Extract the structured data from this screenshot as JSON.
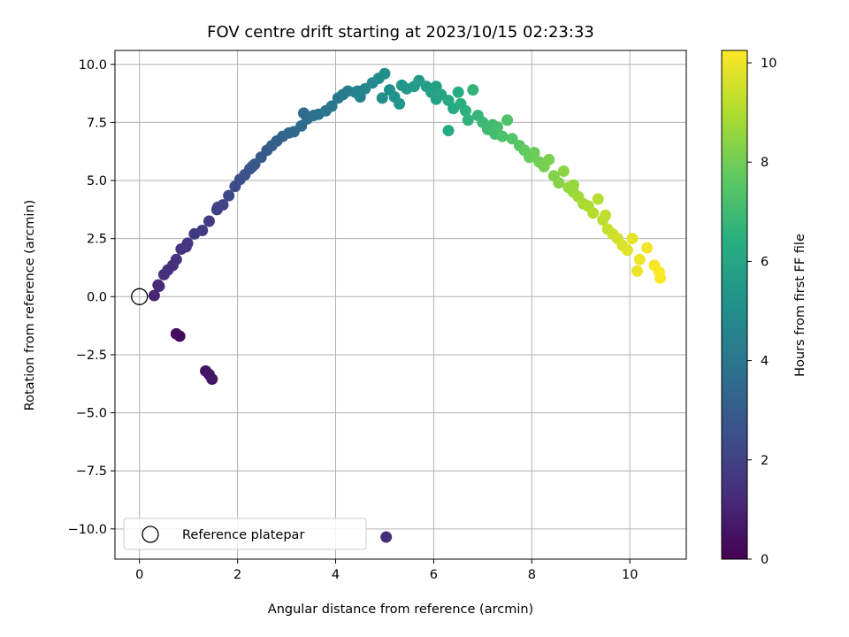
{
  "chart_data": {
    "type": "scatter",
    "title": "FOV centre drift starting at 2023/10/15 02:23:33",
    "xlabel": "Angular distance from reference (arcmin)",
    "ylabel": "Rotation from reference (arcmin)",
    "xlim": [
      -0.5,
      11.15
    ],
    "ylim": [
      -11.3,
      10.6
    ],
    "xticks": [
      "0",
      "2",
      "4",
      "6",
      "8",
      "10"
    ],
    "yticks": [
      "10.0",
      "7.5",
      "5.0",
      "2.5",
      "0.0",
      "−2.5",
      "−5.0",
      "−7.5",
      "−10.0"
    ],
    "grid": true,
    "legend": {
      "position": "lower-left",
      "entries": [
        "Reference platepar"
      ]
    },
    "colorbar": {
      "label": "Hours from first FF file",
      "range": [
        0,
        10.25
      ],
      "ticks": [
        "0",
        "2",
        "4",
        "6",
        "8",
        "10"
      ],
      "colormap": "viridis"
    },
    "reference_point": {
      "x": 0,
      "y": 0,
      "label": "Reference platepar"
    },
    "points_xyh": [
      [
        0.75,
        -1.6,
        0.25
      ],
      [
        0.82,
        -1.7,
        0.3
      ],
      [
        1.35,
        -3.2,
        0.5
      ],
      [
        1.42,
        -3.35,
        0.55
      ],
      [
        1.48,
        -3.55,
        0.6
      ],
      [
        5.03,
        -10.35,
        1.3
      ],
      [
        0.3,
        0.05,
        1.1
      ],
      [
        0.38,
        0.5,
        1.2
      ],
      [
        0.5,
        0.95,
        1.3
      ],
      [
        0.58,
        1.15,
        1.35
      ],
      [
        0.68,
        1.35,
        1.4
      ],
      [
        0.75,
        1.6,
        1.45
      ],
      [
        0.85,
        2.05,
        1.55
      ],
      [
        0.98,
        2.3,
        1.6
      ],
      [
        1.12,
        2.7,
        1.7
      ],
      [
        1.28,
        2.85,
        1.75
      ],
      [
        1.42,
        3.25,
        1.85
      ],
      [
        1.58,
        3.75,
        1.95
      ],
      [
        1.7,
        3.95,
        2.05
      ],
      [
        1.82,
        4.35,
        2.2
      ],
      [
        1.95,
        4.75,
        2.35
      ],
      [
        2.05,
        5.05,
        2.45
      ],
      [
        2.15,
        5.25,
        2.55
      ],
      [
        2.25,
        5.5,
        2.65
      ],
      [
        2.35,
        5.7,
        2.75
      ],
      [
        2.48,
        6.0,
        2.85
      ],
      [
        2.6,
        6.3,
        2.95
      ],
      [
        2.7,
        6.5,
        3.05
      ],
      [
        2.8,
        6.7,
        3.15
      ],
      [
        2.92,
        6.9,
        3.25
      ],
      [
        3.05,
        7.05,
        3.35
      ],
      [
        3.15,
        7.1,
        3.45
      ],
      [
        3.3,
        7.35,
        3.55
      ],
      [
        3.42,
        7.65,
        3.65
      ],
      [
        3.55,
        7.8,
        3.75
      ],
      [
        3.65,
        7.85,
        3.85
      ],
      [
        3.8,
        8.0,
        3.95
      ],
      [
        3.92,
        8.2,
        4.05
      ],
      [
        4.05,
        8.55,
        4.15
      ],
      [
        4.15,
        8.7,
        4.25
      ],
      [
        4.25,
        8.85,
        4.35
      ],
      [
        4.4,
        8.8,
        4.45
      ],
      [
        4.5,
        8.6,
        4.55
      ],
      [
        4.6,
        8.95,
        4.7
      ],
      [
        4.75,
        9.2,
        4.8
      ],
      [
        4.88,
        9.4,
        4.9
      ],
      [
        5.0,
        9.6,
        5.0
      ],
      [
        5.1,
        8.9,
        5.1
      ],
      [
        5.2,
        8.6,
        5.2
      ],
      [
        5.3,
        8.3,
        5.3
      ],
      [
        5.45,
        8.95,
        5.4
      ],
      [
        5.6,
        9.05,
        5.5
      ],
      [
        5.7,
        9.3,
        5.6
      ],
      [
        5.85,
        9.05,
        5.7
      ],
      [
        5.95,
        8.8,
        5.8
      ],
      [
        6.05,
        8.5,
        5.9
      ],
      [
        6.15,
        8.7,
        6.0
      ],
      [
        6.3,
        8.45,
        6.15
      ],
      [
        6.4,
        8.1,
        6.25
      ],
      [
        6.5,
        8.8,
        6.3
      ],
      [
        6.55,
        8.3,
        6.35
      ],
      [
        6.65,
        8.0,
        6.5
      ],
      [
        6.7,
        7.6,
        6.6
      ],
      [
        6.8,
        8.9,
        6.65
      ],
      [
        6.9,
        7.8,
        6.75
      ],
      [
        7.0,
        7.5,
        6.85
      ],
      [
        7.1,
        7.2,
        6.95
      ],
      [
        7.2,
        7.4,
        7.05
      ],
      [
        7.3,
        7.3,
        7.15
      ],
      [
        7.4,
        6.9,
        7.25
      ],
      [
        7.5,
        7.6,
        7.3
      ],
      [
        7.6,
        6.8,
        7.45
      ],
      [
        7.75,
        6.5,
        7.6
      ],
      [
        7.85,
        6.3,
        7.7
      ],
      [
        7.95,
        6.0,
        7.8
      ],
      [
        8.05,
        6.2,
        7.9
      ],
      [
        8.15,
        5.8,
        8.0
      ],
      [
        8.25,
        5.6,
        8.1
      ],
      [
        8.35,
        5.9,
        8.15
      ],
      [
        8.45,
        5.2,
        8.25
      ],
      [
        8.55,
        4.9,
        8.35
      ],
      [
        8.65,
        5.4,
        8.45
      ],
      [
        8.75,
        4.7,
        8.55
      ],
      [
        8.85,
        4.5,
        8.65
      ],
      [
        8.95,
        4.3,
        8.75
      ],
      [
        9.05,
        4.0,
        8.85
      ],
      [
        9.15,
        3.9,
        8.95
      ],
      [
        9.25,
        3.6,
        9.05
      ],
      [
        9.35,
        4.2,
        9.1
      ],
      [
        9.45,
        3.3,
        9.2
      ],
      [
        9.55,
        2.9,
        9.35
      ],
      [
        9.65,
        2.7,
        9.45
      ],
      [
        9.75,
        2.5,
        9.55
      ],
      [
        9.85,
        2.2,
        9.65
      ],
      [
        9.95,
        2.0,
        9.75
      ],
      [
        10.05,
        2.5,
        9.85
      ],
      [
        10.15,
        1.1,
        9.95
      ],
      [
        10.2,
        1.6,
        10.0
      ],
      [
        10.35,
        2.1,
        10.05
      ],
      [
        10.5,
        1.35,
        10.15
      ],
      [
        10.6,
        1.05,
        10.2
      ],
      [
        10.62,
        0.8,
        10.25
      ],
      [
        6.3,
        7.15,
        6.2
      ],
      [
        5.35,
        9.1,
        5.35
      ],
      [
        4.95,
        8.55,
        5.05
      ],
      [
        4.45,
        8.85,
        4.5
      ],
      [
        2.3,
        5.6,
        2.7
      ],
      [
        1.6,
        3.85,
        2.0
      ],
      [
        0.95,
        2.15,
        1.58
      ],
      [
        0.4,
        0.45,
        1.22
      ],
      [
        7.25,
        7.0,
        7.1
      ],
      [
        8.85,
        4.8,
        8.6
      ],
      [
        9.5,
        3.5,
        9.25
      ],
      [
        6.05,
        9.05,
        5.75
      ],
      [
        3.35,
        7.9,
        3.6
      ]
    ]
  }
}
